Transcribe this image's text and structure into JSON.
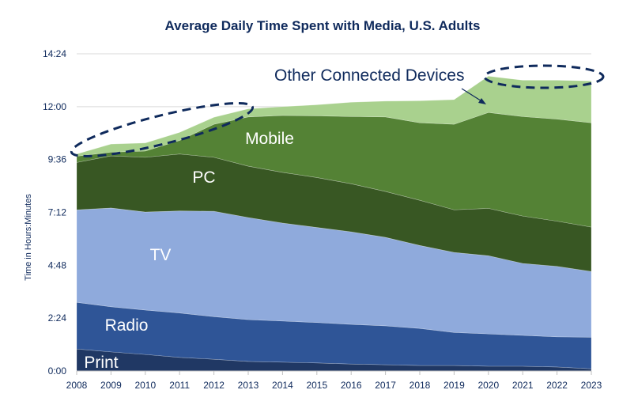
{
  "chart_data": {
    "type": "area",
    "stacked": true,
    "title": "Average Daily Time Spent with Media, U.S. Adults",
    "xlabel": "",
    "ylabel": "Time in Hours:Minutes",
    "x": [
      2008,
      2009,
      2010,
      2011,
      2012,
      2013,
      2014,
      2015,
      2016,
      2017,
      2018,
      2019,
      2020,
      2021,
      2022,
      2023
    ],
    "ylim_minutes": [
      0,
      864
    ],
    "yticks_minutes": [
      0,
      144,
      288,
      432,
      576,
      720,
      864
    ],
    "ytick_labels": [
      "0:00",
      "2:24",
      "4:48",
      "7:12",
      "9:36",
      "12:00",
      "14:24"
    ],
    "grid": true,
    "value_units": "minutes per day",
    "series": [
      {
        "name": "Print",
        "color": "#203864",
        "values": [
          60,
          52,
          45,
          37,
          32,
          26,
          24,
          22,
          19,
          17,
          15,
          15,
          13,
          13,
          11,
          6
        ]
      },
      {
        "name": "Radio",
        "color": "#2f5597",
        "values": [
          127,
          123,
          121,
          121,
          116,
          114,
          112,
          110,
          108,
          106,
          101,
          90,
          88,
          84,
          82,
          86
        ]
      },
      {
        "name": "TV",
        "color": "#8faadc",
        "values": [
          252,
          269,
          267,
          278,
          287,
          278,
          267,
          259,
          252,
          241,
          226,
          218,
          213,
          196,
          192,
          179
        ]
      },
      {
        "name": "PC",
        "color": "#385723",
        "values": [
          129,
          142,
          149,
          155,
          147,
          140,
          138,
          136,
          131,
          125,
          123,
          116,
          129,
          129,
          123,
          121
        ]
      },
      {
        "name": "Mobile",
        "color": "#548235",
        "values": [
          17,
          10,
          17,
          37,
          90,
          134,
          155,
          168,
          183,
          203,
          211,
          233,
          261,
          271,
          278,
          284
        ]
      },
      {
        "name": "Other Connected Devices",
        "color": "#a9d18e",
        "values": [
          6,
          22,
          22,
          22,
          19,
          22,
          24,
          30,
          39,
          43,
          60,
          67,
          99,
          99,
          106,
          114
        ]
      }
    ],
    "annotations": [
      "Other Connected Devices"
    ]
  }
}
